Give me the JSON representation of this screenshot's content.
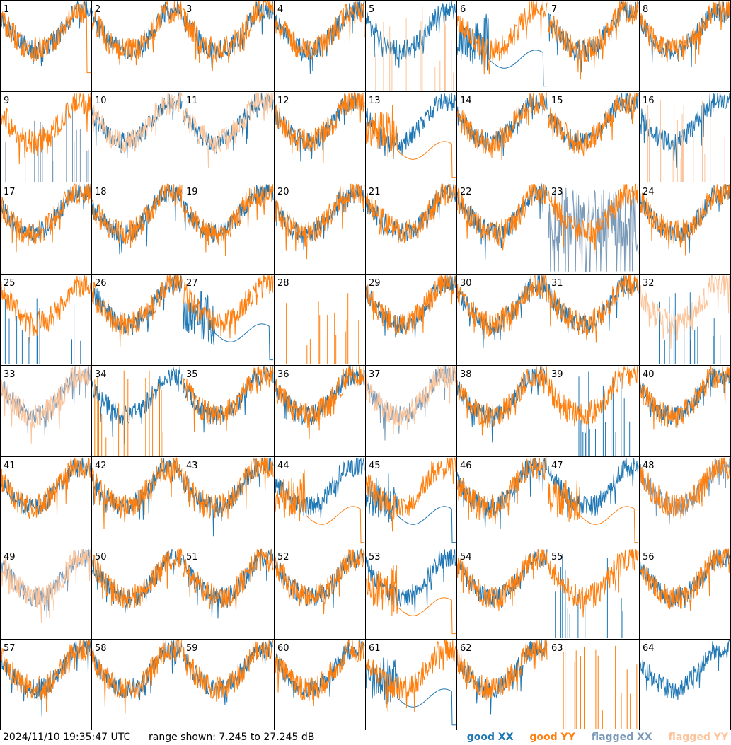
{
  "footer": {
    "timestamp": "2024/11/10 19:35:47 UTC",
    "range_text": "range shown: 7.245 to 27.245 dB"
  },
  "legend": {
    "good_xx": "good XX",
    "good_yy": "good YY",
    "flagged_xx": "flagged XX",
    "flagged_yy": "flagged YY"
  },
  "colors": {
    "good_xx": "#1f77b4",
    "good_yy": "#ff7f0e",
    "flagged_xx": "#7a9ab8",
    "flagged_yy": "#fbc49a",
    "border": "#000000"
  },
  "chart_data": {
    "type": "line",
    "description_units": "dB",
    "ylim": [
      7.245,
      27.245
    ],
    "panels": [
      {
        "id": "1",
        "xx": "good",
        "yy": "good",
        "xx_shape": "normal",
        "yy_shape": "dropend"
      },
      {
        "id": "2",
        "xx": "good",
        "yy": "good",
        "xx_shape": "normal",
        "yy_shape": "normal"
      },
      {
        "id": "3",
        "xx": "good",
        "yy": "good",
        "xx_shape": "normal",
        "yy_shape": "normal"
      },
      {
        "id": "4",
        "xx": "good",
        "yy": "good",
        "xx_shape": "normal",
        "yy_shape": "normal"
      },
      {
        "id": "5",
        "xx": "good",
        "yy": "flagged",
        "xx_shape": "normal",
        "yy_shape": "spikes"
      },
      {
        "id": "6",
        "xx": "good",
        "yy": "good",
        "xx_shape": "dip",
        "yy_shape": "normal"
      },
      {
        "id": "7",
        "xx": "good",
        "yy": "good",
        "xx_shape": "normal",
        "yy_shape": "normal"
      },
      {
        "id": "8",
        "xx": "good",
        "yy": "good",
        "xx_shape": "normal",
        "yy_shape": "normal"
      },
      {
        "id": "9",
        "xx": "flagged",
        "yy": "good",
        "xx_shape": "spikes",
        "yy_shape": "normal"
      },
      {
        "id": "10",
        "xx": "good",
        "yy": "flagged",
        "xx_shape": "normal",
        "yy_shape": "normal"
      },
      {
        "id": "11",
        "xx": "good",
        "yy": "flagged",
        "xx_shape": "normal",
        "yy_shape": "normal"
      },
      {
        "id": "12",
        "xx": "good",
        "yy": "good",
        "xx_shape": "normal",
        "yy_shape": "normal"
      },
      {
        "id": "13",
        "xx": "good",
        "yy": "good",
        "xx_shape": "normal",
        "yy_shape": "dip"
      },
      {
        "id": "14",
        "xx": "good",
        "yy": "good",
        "xx_shape": "normal",
        "yy_shape": "normal"
      },
      {
        "id": "15",
        "xx": "good",
        "yy": "good",
        "xx_shape": "normal",
        "yy_shape": "normal"
      },
      {
        "id": "16",
        "xx": "good",
        "yy": "flagged",
        "xx_shape": "normal",
        "yy_shape": "spikes"
      },
      {
        "id": "17",
        "xx": "good",
        "yy": "good",
        "xx_shape": "normal",
        "yy_shape": "normal"
      },
      {
        "id": "18",
        "xx": "good",
        "yy": "good",
        "xx_shape": "normal",
        "yy_shape": "normal"
      },
      {
        "id": "19",
        "xx": "good",
        "yy": "good",
        "xx_shape": "normal",
        "yy_shape": "normal"
      },
      {
        "id": "20",
        "xx": "good",
        "yy": "good",
        "xx_shape": "normal",
        "yy_shape": "normal"
      },
      {
        "id": "21",
        "xx": "good",
        "yy": "good",
        "xx_shape": "normal",
        "yy_shape": "normal"
      },
      {
        "id": "22",
        "xx": "good",
        "yy": "good",
        "xx_shape": "normal",
        "yy_shape": "normal"
      },
      {
        "id": "23",
        "xx": "flagged",
        "yy": "good",
        "xx_shape": "noisy",
        "yy_shape": "normal"
      },
      {
        "id": "24",
        "xx": "good",
        "yy": "good",
        "xx_shape": "normal",
        "yy_shape": "normal"
      },
      {
        "id": "25",
        "xx": "good",
        "yy": "good",
        "xx_shape": "spikes",
        "yy_shape": "normal"
      },
      {
        "id": "26",
        "xx": "good",
        "yy": "good",
        "xx_shape": "normal",
        "yy_shape": "normal"
      },
      {
        "id": "27",
        "xx": "good",
        "yy": "good",
        "xx_shape": "dip",
        "yy_shape": "normal"
      },
      {
        "id": "28",
        "xx": "none",
        "yy": "good",
        "xx_shape": "none",
        "yy_shape": "spikes"
      },
      {
        "id": "29",
        "xx": "good",
        "yy": "good",
        "xx_shape": "normal",
        "yy_shape": "normal"
      },
      {
        "id": "30",
        "xx": "good",
        "yy": "good",
        "xx_shape": "normal",
        "yy_shape": "normal"
      },
      {
        "id": "31",
        "xx": "good",
        "yy": "good",
        "xx_shape": "normal",
        "yy_shape": "normal"
      },
      {
        "id": "32",
        "xx": "good",
        "yy": "flagged",
        "xx_shape": "spikes",
        "yy_shape": "normal"
      },
      {
        "id": "33",
        "xx": "flagged",
        "yy": "flagged",
        "xx_shape": "normal",
        "yy_shape": "normal"
      },
      {
        "id": "34",
        "xx": "good",
        "yy": "good",
        "xx_shape": "normal",
        "yy_shape": "spikes"
      },
      {
        "id": "35",
        "xx": "good",
        "yy": "good",
        "xx_shape": "normal",
        "yy_shape": "normal"
      },
      {
        "id": "36",
        "xx": "good",
        "yy": "good",
        "xx_shape": "normal",
        "yy_shape": "normal"
      },
      {
        "id": "37",
        "xx": "flagged",
        "yy": "flagged",
        "xx_shape": "normal",
        "yy_shape": "normal"
      },
      {
        "id": "38",
        "xx": "good",
        "yy": "good",
        "xx_shape": "normal",
        "yy_shape": "normal"
      },
      {
        "id": "39",
        "xx": "good",
        "yy": "good",
        "xx_shape": "spikes",
        "yy_shape": "normal"
      },
      {
        "id": "40",
        "xx": "good",
        "yy": "good",
        "xx_shape": "normal",
        "yy_shape": "normal"
      },
      {
        "id": "41",
        "xx": "good",
        "yy": "good",
        "xx_shape": "normal",
        "yy_shape": "normal"
      },
      {
        "id": "42",
        "xx": "good",
        "yy": "good",
        "xx_shape": "normal",
        "yy_shape": "normal"
      },
      {
        "id": "43",
        "xx": "good",
        "yy": "good",
        "xx_shape": "normal",
        "yy_shape": "normal"
      },
      {
        "id": "44",
        "xx": "good",
        "yy": "good",
        "xx_shape": "normal",
        "yy_shape": "dip"
      },
      {
        "id": "45",
        "xx": "good",
        "yy": "good",
        "xx_shape": "dip",
        "yy_shape": "normal"
      },
      {
        "id": "46",
        "xx": "good",
        "yy": "good",
        "xx_shape": "normal",
        "yy_shape": "normal"
      },
      {
        "id": "47",
        "xx": "good",
        "yy": "good",
        "xx_shape": "normal",
        "yy_shape": "dip"
      },
      {
        "id": "48",
        "xx": "flagged",
        "yy": "good",
        "xx_shape": "normal",
        "yy_shape": "normal"
      },
      {
        "id": "49",
        "xx": "flagged",
        "yy": "flagged",
        "xx_shape": "normal",
        "yy_shape": "normal"
      },
      {
        "id": "50",
        "xx": "good",
        "yy": "good",
        "xx_shape": "normal",
        "yy_shape": "normal"
      },
      {
        "id": "51",
        "xx": "good",
        "yy": "good",
        "xx_shape": "normal",
        "yy_shape": "normal"
      },
      {
        "id": "52",
        "xx": "good",
        "yy": "good",
        "xx_shape": "normal",
        "yy_shape": "normal"
      },
      {
        "id": "53",
        "xx": "good",
        "yy": "good",
        "xx_shape": "normal",
        "yy_shape": "dip"
      },
      {
        "id": "54",
        "xx": "good",
        "yy": "good",
        "xx_shape": "normal",
        "yy_shape": "normal"
      },
      {
        "id": "55",
        "xx": "good",
        "yy": "good",
        "xx_shape": "spikes",
        "yy_shape": "normal"
      },
      {
        "id": "56",
        "xx": "good",
        "yy": "good",
        "xx_shape": "normal",
        "yy_shape": "normal"
      },
      {
        "id": "57",
        "xx": "good",
        "yy": "good",
        "xx_shape": "normal",
        "yy_shape": "normal"
      },
      {
        "id": "58",
        "xx": "good",
        "yy": "good",
        "xx_shape": "normal",
        "yy_shape": "normal"
      },
      {
        "id": "59",
        "xx": "good",
        "yy": "good",
        "xx_shape": "normal",
        "yy_shape": "normal"
      },
      {
        "id": "60",
        "xx": "good",
        "yy": "good",
        "xx_shape": "normal",
        "yy_shape": "normal"
      },
      {
        "id": "61",
        "xx": "good",
        "yy": "good",
        "xx_shape": "dip",
        "yy_shape": "normal"
      },
      {
        "id": "62",
        "xx": "good",
        "yy": "good",
        "xx_shape": "normal",
        "yy_shape": "normal"
      },
      {
        "id": "63",
        "xx": "none",
        "yy": "good",
        "xx_shape": "none",
        "yy_shape": "spikes"
      },
      {
        "id": "64",
        "xx": "good",
        "yy": "none",
        "xx_shape": "normal",
        "yy_shape": "none"
      }
    ]
  }
}
